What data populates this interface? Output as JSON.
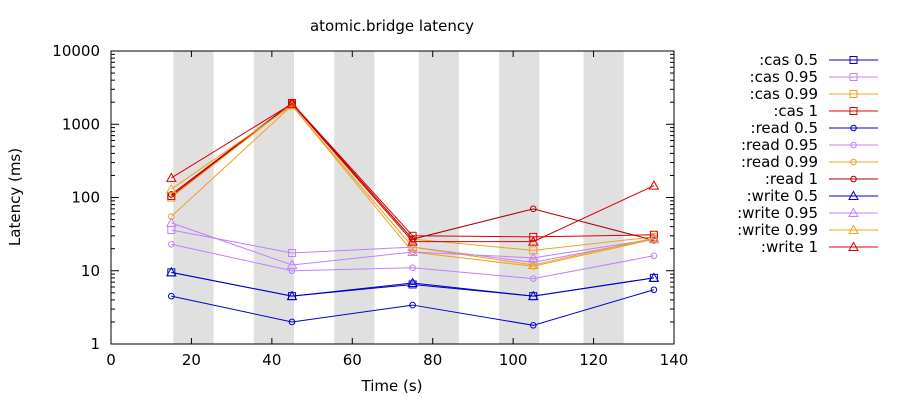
{
  "chart_data": {
    "type": "line",
    "title": "atomic.bridge latency",
    "xlabel": "Time (s)",
    "ylabel": "Latency (ms)",
    "xlim": [
      0,
      140
    ],
    "ylim": [
      1,
      10000
    ],
    "yscale": "log",
    "grid": false,
    "legend_position": "right",
    "x_ticks": [
      0,
      20,
      40,
      60,
      80,
      100,
      120,
      140
    ],
    "y_ticks": [
      1,
      10,
      100,
      1000,
      10000
    ],
    "x_tick_labels": [
      "0",
      "20",
      "40",
      "60",
      "80",
      "100",
      "120",
      "140"
    ],
    "y_tick_labels": [
      "1",
      "10",
      "100",
      "1000",
      "10000"
    ],
    "shaded_intervals": [
      [
        15.5,
        25.5
      ],
      [
        35.5,
        45.5
      ],
      [
        55.5,
        65.5
      ],
      [
        76.5,
        86.5
      ],
      [
        96.5,
        106.5
      ],
      [
        117.5,
        127.5
      ]
    ],
    "shade_color": "#e0e0e0",
    "x": [
      15,
      45,
      75,
      105,
      135
    ],
    "series": [
      {
        "name": ":cas 0.5",
        "color": "#0000cc",
        "marker": "square",
        "values": [
          9.5,
          4.5,
          6.5,
          4.5,
          8
        ]
      },
      {
        "name": ":cas 0.95",
        "color": "#c080ff",
        "marker": "square",
        "values": [
          36,
          17.5,
          21,
          13,
          27
        ]
      },
      {
        "name": ":cas 0.99",
        "color": "#f0a020",
        "marker": "square",
        "values": [
          100,
          1900,
          27,
          19,
          29
        ]
      },
      {
        "name": ":cas 1",
        "color": "#dd0000",
        "marker": "square",
        "values": [
          105,
          1950,
          30,
          29,
          31
        ]
      },
      {
        "name": ":read 0.5",
        "color": "#0000cc",
        "marker": "circle",
        "values": [
          4.5,
          2,
          3.4,
          1.8,
          5.5
        ]
      },
      {
        "name": ":read 0.95",
        "color": "#c080ff",
        "marker": "circle",
        "values": [
          23,
          10,
          11,
          7.8,
          16
        ]
      },
      {
        "name": ":read 0.99",
        "color": "#f0a020",
        "marker": "circle",
        "values": [
          55,
          1800,
          18,
          11.5,
          27
        ]
      },
      {
        "name": ":read 1",
        "color": "#aa0000",
        "marker": "circle",
        "values": [
          110,
          1950,
          27,
          70,
          26
        ]
      },
      {
        "name": ":write 0.5",
        "color": "#0000cc",
        "marker": "triangle",
        "values": [
          9.5,
          4.5,
          6.8,
          4.5,
          8
        ]
      },
      {
        "name": ":write 0.95",
        "color": "#c080ff",
        "marker": "triangle",
        "values": [
          45,
          12,
          18,
          15,
          27
        ]
      },
      {
        "name": ":write 0.99",
        "color": "#f0a020",
        "marker": "triangle",
        "values": [
          130,
          1800,
          21,
          12,
          28
        ]
      },
      {
        "name": ":write 1",
        "color": "#dd0000",
        "marker": "triangle",
        "values": [
          185,
          1900,
          25,
          25,
          145
        ]
      }
    ]
  }
}
